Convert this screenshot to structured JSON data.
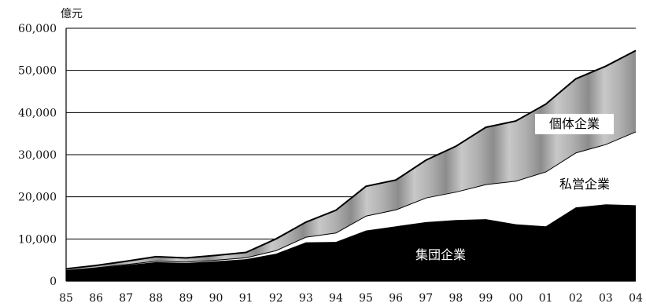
{
  "chart_data": {
    "type": "area",
    "stacked": true,
    "title": "",
    "xlabel": "",
    "ylabel": "億元",
    "categories": [
      "85",
      "86",
      "87",
      "88",
      "89",
      "90",
      "91",
      "92",
      "93",
      "94",
      "95",
      "96",
      "97",
      "98",
      "99",
      "00",
      "01",
      "02",
      "03",
      "04"
    ],
    "ylim": [
      0,
      60000
    ],
    "yticks": [
      "0",
      "10,000",
      "20,000",
      "30,000",
      "40,000",
      "50,000",
      "60,000"
    ],
    "grid": "horizontal",
    "series": [
      {
        "name": "集団企業",
        "values": [
          2500,
          3100,
          3800,
          4500,
          4300,
          4700,
          5200,
          6500,
          9200,
          9300,
          12000,
          13000,
          14000,
          14500,
          14700,
          13500,
          13000,
          17500,
          18200,
          18000
        ],
        "color": "#000000"
      },
      {
        "name": "私営企業",
        "values": [
          100,
          150,
          200,
          300,
          300,
          350,
          400,
          800,
          1300,
          2200,
          3500,
          4000,
          5800,
          6700,
          8300,
          10300,
          13000,
          13000,
          14300,
          17500
        ],
        "color": "#ffffff"
      },
      {
        "name": "個体企業",
        "values": [
          300,
          450,
          700,
          1000,
          900,
          1050,
          1200,
          2700,
          3500,
          5300,
          7000,
          7000,
          8900,
          10800,
          13500,
          14200,
          16000,
          17500,
          18500,
          19200
        ],
        "color": "#a8a8a8"
      }
    ]
  },
  "colors": {
    "axis": "#000000",
    "grid": "#000000",
    "band_light": "#c8c8c8",
    "band_dark": "#8c8c8c"
  }
}
